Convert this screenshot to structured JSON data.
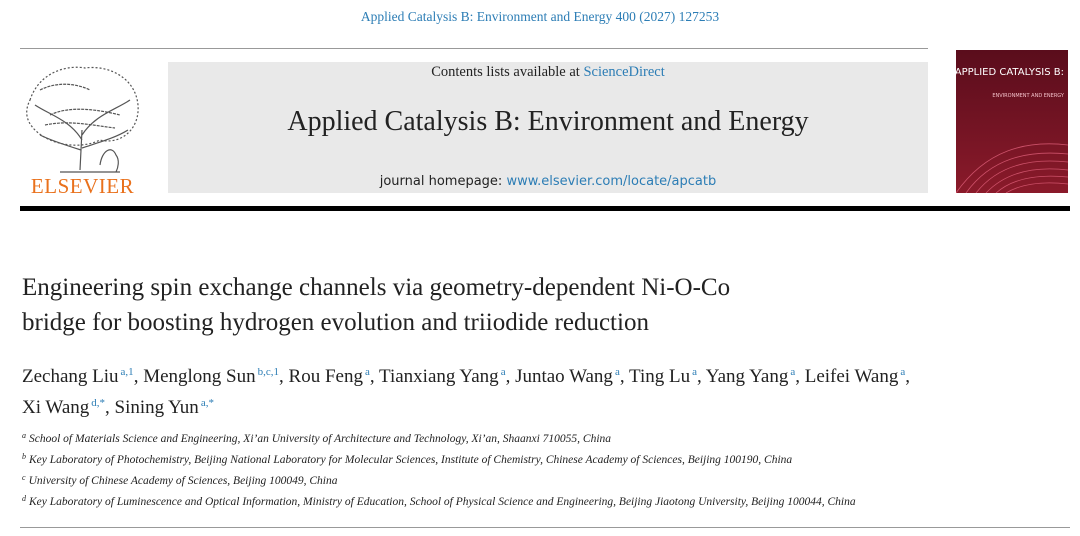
{
  "header": {
    "journal_ref": "Applied Catalysis B: Environment and Energy 400 (2027) 127253",
    "publisher": "ELSEVIER",
    "contents_prefix": "Contents lists available at",
    "contents_link": "ScienceDirect",
    "journal_title": "Applied Catalysis B: Environment and Energy",
    "homepage_prefix": "journal homepage:",
    "homepage_link": "www.elsevier.com/locate/apcatb",
    "cover_title": "APPLIED CATALYSIS B:",
    "cover_subtitle": "ENVIRONMENT AND ENERGY"
  },
  "article": {
    "title_lines": [
      "Engineering spin exchange channels via geometry-dependent Ni-O-Co",
      "bridge for boosting hydrogen evolution and triiodide reduction"
    ],
    "authors": [
      {
        "name": "Zechang Liu",
        "affil": "a,1",
        "sep": ","
      },
      {
        "name": "Menglong Sun",
        "affil": "b,c,1",
        "sep": ","
      },
      {
        "name": "Rou Feng",
        "affil": "a",
        "sep": ","
      },
      {
        "name": "Tianxiang Yang",
        "affil": "a",
        "sep": ","
      },
      {
        "name": "Juntao Wang",
        "affil": "a",
        "sep": ","
      },
      {
        "name": "Ting Lu",
        "affil": "a",
        "sep": ","
      },
      {
        "name": "Yang Yang",
        "affil": "a",
        "sep": ","
      },
      {
        "name": "Leifei Wang",
        "affil": "a",
        "sep": ","
      },
      {
        "name": "Xi Wang",
        "affil": "d,*",
        "sep": ","
      },
      {
        "name": "Sining Yun",
        "affil": "a,*"
      }
    ],
    "affiliations": [
      {
        "mark": "a",
        "text": "School of Materials Science and Engineering, Xi’an University of Architecture and Technology, Xi’an, Shaanxi 710055, China"
      },
      {
        "mark": "b",
        "text": "Key Laboratory of Photochemistry, Beijing National Laboratory for Molecular Sciences, Institute of Chemistry, Chinese Academy of Sciences, Beijing 100190, China"
      },
      {
        "mark": "c",
        "text": "University of Chinese Academy of Sciences, Beijing 100049, China"
      },
      {
        "mark": "d",
        "text": "Key Laboratory of Luminescence and Optical Information, Ministry of Education, School of Physical Science and Engineering, Beijing Jiaotong University, Beijing 100044, China"
      }
    ]
  }
}
